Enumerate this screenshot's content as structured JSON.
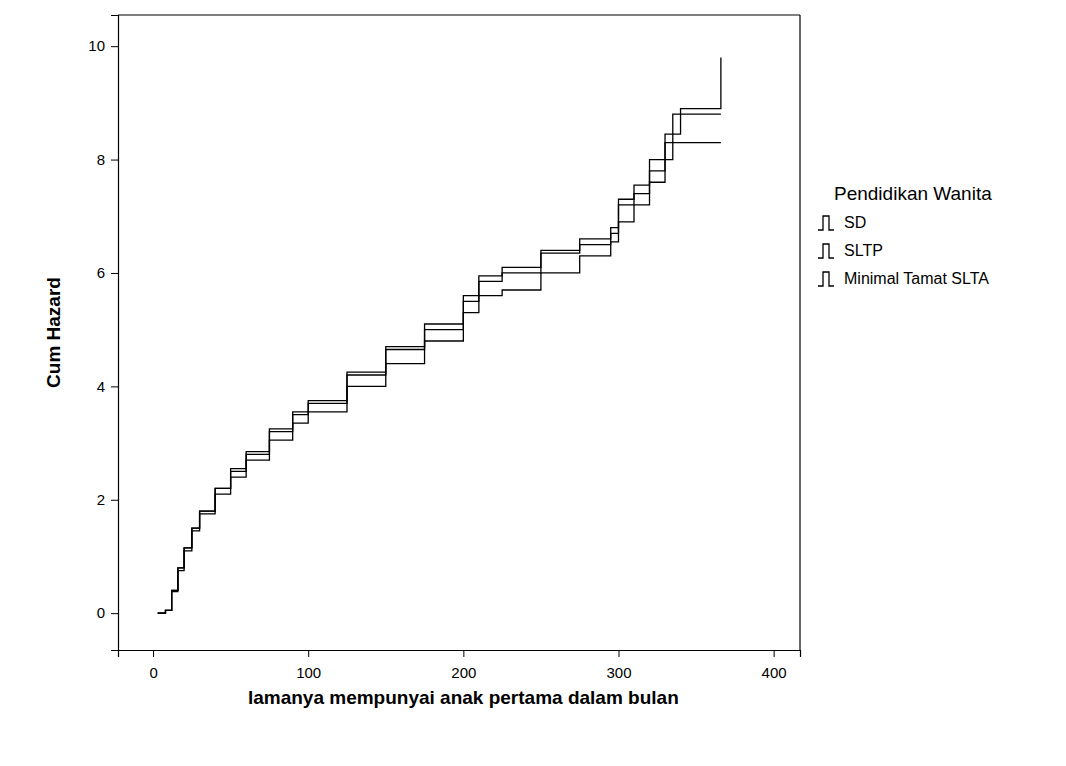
{
  "chart_data": {
    "type": "line",
    "x_label": "lamanya mempunyai anak pertama dalam bulan",
    "y_label": "Cum Hazard",
    "legend_title": "Pendidikan Wanita",
    "legend": "right",
    "grid": false,
    "line_style": "step",
    "xlim": [
      -22.6,
      417
    ],
    "ylim": [
      -0.65,
      10.55
    ],
    "xticks": [
      0,
      100,
      200,
      300,
      400
    ],
    "yticks": [
      0,
      2,
      4,
      6,
      8,
      10
    ],
    "x": [
      3,
      8,
      12,
      16,
      20,
      25,
      30,
      40,
      50,
      60,
      75,
      90,
      100,
      125,
      150,
      175,
      200,
      210,
      225,
      250,
      275,
      295,
      300,
      310,
      320,
      330,
      335,
      340,
      365,
      366
    ],
    "series": [
      {
        "name": "SD",
        "color": "#000000",
        "values": [
          0,
          0.05,
          0.4,
          0.8,
          1.15,
          1.5,
          1.8,
          2.2,
          2.55,
          2.85,
          3.25,
          3.55,
          3.75,
          4.25,
          4.7,
          5.1,
          5.6,
          5.95,
          6.1,
          6.4,
          6.6,
          6.8,
          7.3,
          7.55,
          8.0,
          8.45,
          8.45,
          8.9,
          8.9,
          9.8
        ]
      },
      {
        "name": "SLTP",
        "color": "#000000",
        "values": [
          0,
          0.05,
          0.4,
          0.8,
          1.15,
          1.5,
          1.8,
          2.2,
          2.5,
          2.8,
          3.2,
          3.5,
          3.7,
          4.2,
          4.65,
          5.0,
          5.5,
          5.85,
          6.0,
          6.35,
          6.5,
          6.7,
          7.2,
          7.4,
          7.8,
          8.3,
          8.8,
          8.8,
          8.8,
          8.8
        ]
      },
      {
        "name": "Minimal Tamat SLTA",
        "color": "#000000",
        "values": [
          0,
          0.05,
          0.38,
          0.75,
          1.1,
          1.45,
          1.75,
          2.1,
          2.4,
          2.7,
          3.05,
          3.35,
          3.55,
          4.0,
          4.4,
          4.8,
          5.3,
          5.6,
          5.7,
          6.0,
          6.3,
          6.55,
          6.9,
          7.2,
          7.6,
          8.0,
          8.3,
          8.3,
          8.3,
          8.3
        ]
      }
    ]
  }
}
